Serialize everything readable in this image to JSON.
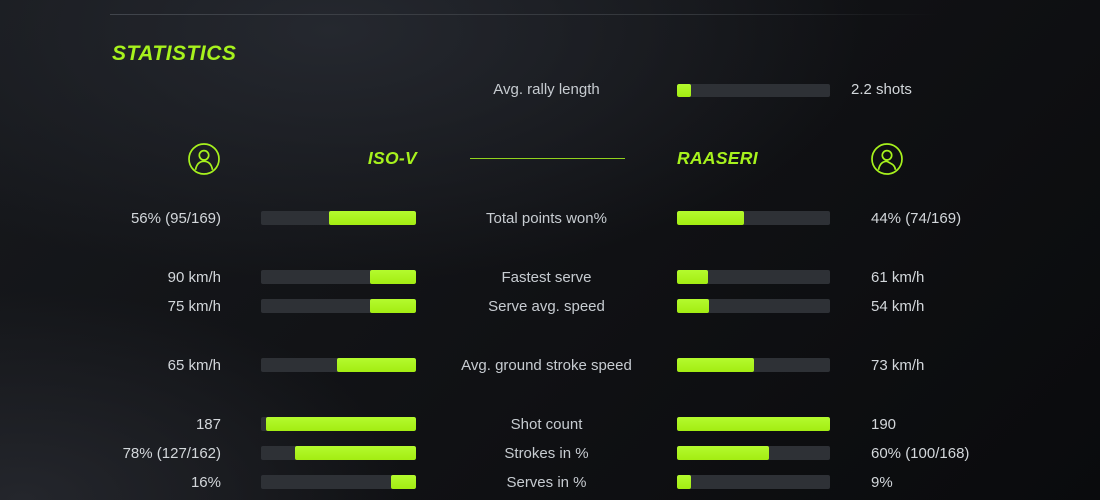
{
  "title": "STATISTICS",
  "colors": {
    "accent": "#a7f21d",
    "track": "#2e3136",
    "text": "#ccd1d5",
    "background": "#121418"
  },
  "icons": {
    "left_avatar": "user-avatar-icon",
    "right_avatar": "user-avatar-icon"
  },
  "players": {
    "left": "ISO-V",
    "right": "RAASERI"
  },
  "rally": {
    "label": "Avg. rally length",
    "value": "2.2 shots",
    "fill_pct": 9
  },
  "stats": [
    {
      "label": "Total points won%",
      "left_value": "56% (95/169)",
      "right_value": "44% (74/169)",
      "left_fill": 56,
      "right_fill": 44
    },
    {
      "label": "Fastest serve",
      "left_value": "90 km/h",
      "right_value": "61 km/h",
      "left_fill": 30,
      "right_fill": 20
    },
    {
      "label": "Serve avg. speed",
      "left_value": "75 km/h",
      "right_value": "54 km/h",
      "left_fill": 30,
      "right_fill": 21
    },
    {
      "label": "Avg. ground stroke speed",
      "left_value": "65 km/h",
      "right_value": "73 km/h",
      "left_fill": 51,
      "right_fill": 50
    },
    {
      "label": "Shot count",
      "left_value": "187",
      "right_value": "190",
      "left_fill": 97,
      "right_fill": 100
    },
    {
      "label": "Strokes in %",
      "left_value": "78% (127/162)",
      "right_value": "60% (100/168)",
      "left_fill": 78,
      "right_fill": 60
    },
    {
      "label": "Serves in %",
      "left_value": "16%",
      "right_value": "9%",
      "left_fill": 16,
      "right_fill": 9
    }
  ],
  "chart_data": {
    "type": "bar",
    "orientation": "horizontal-paired",
    "title": "STATISTICS",
    "legend_position": "header",
    "categories": [
      "Avg. rally length",
      "Total points won%",
      "Fastest serve",
      "Serve avg. speed",
      "Avg. ground stroke speed",
      "Shot count",
      "Strokes in %",
      "Serves in %"
    ],
    "series": [
      {
        "name": "ISO-V",
        "values": [
          null,
          56,
          90,
          75,
          65,
          187,
          78,
          16
        ],
        "display": [
          "",
          "56% (95/169)",
          "90 km/h",
          "75 km/h",
          "65 km/h",
          "187",
          "78% (127/162)",
          "16%"
        ]
      },
      {
        "name": "RAASERI",
        "values": [
          null,
          44,
          61,
          54,
          73,
          190,
          60,
          9
        ],
        "display": [
          "",
          "44% (74/169)",
          "61 km/h",
          "54 km/h",
          "73 km/h",
          "190",
          "60% (100/168)",
          "9%"
        ]
      }
    ],
    "shared_values": {
      "Avg. rally length": "2.2 shots"
    },
    "units": {
      "speeds": "km/h",
      "rally": "shots"
    }
  }
}
